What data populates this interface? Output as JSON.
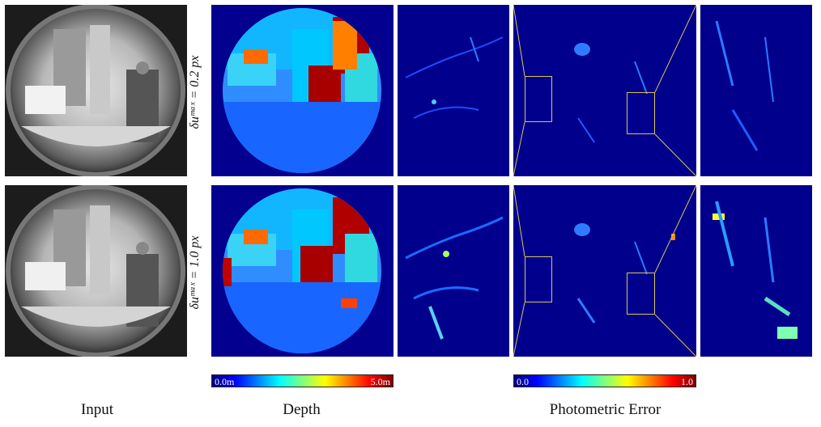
{
  "row_labels": {
    "top": "δuᵐᵃˣ = 0.2 px",
    "bottom": "δuᵐᵃˣ = 1.0 px"
  },
  "colorbars": {
    "depth": {
      "min": "0.0m",
      "max": "5.0m"
    },
    "error": {
      "min": "0.0",
      "max": "1.0"
    }
  },
  "captions": {
    "input": "Input",
    "depth": "Depth",
    "error": "Photometric Error"
  },
  "colormap": [
    "#00007f",
    "#0000ff",
    "#007fff",
    "#00ffff",
    "#7fff7f",
    "#ffff00",
    "#ff7f00",
    "#ff0000",
    "#7f0000"
  ],
  "colors": {
    "highlight_box": "#d8c45a",
    "error_background": "#01008c",
    "depth_background": "#03008f"
  }
}
